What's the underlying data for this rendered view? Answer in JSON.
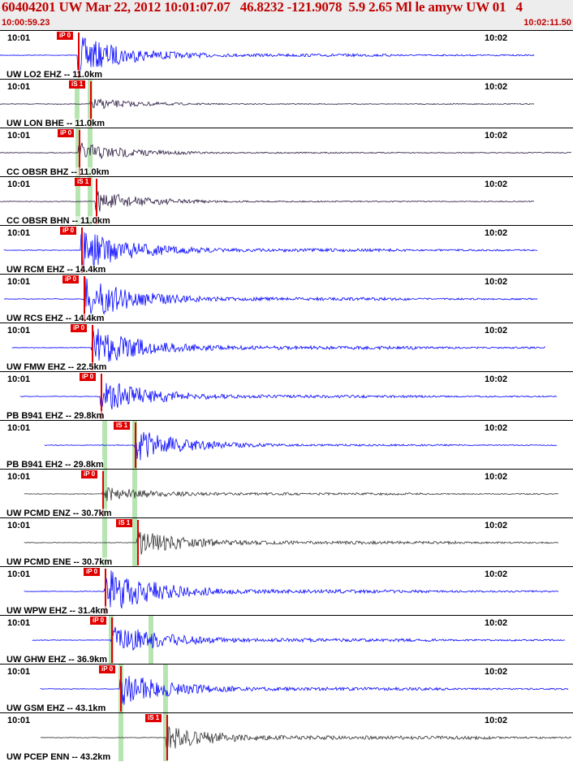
{
  "header": {
    "title": "60404201 UW Mar 22, 2012 10:01:07.07   46.8232 -121.9078  5.9 2.65 Ml le amyw UW 01   4",
    "start_time": "10:00:59.23",
    "end_time": "10:02:11.50"
  },
  "colors": {
    "header_text": "#c00000",
    "pick": "#e00000",
    "trace_blue": "#0000ff",
    "trace_dark": "#2a1a40",
    "trace_gray": "#333333",
    "window": "#b7e5b2"
  },
  "channels": [
    {
      "label": "UW LO2 EHZ -- 11.0km",
      "time_left": "10:01",
      "time_right": "10:02",
      "pick": "iP 0",
      "trace": "blue",
      "amp": 0.8,
      "coda": 0.18
    },
    {
      "label": "UW LON BHE -- 11.0km",
      "time_left": "10:01",
      "time_right": "10:02",
      "pick": "iS 1",
      "trace": "dark",
      "amp": 0.25,
      "coda": 0.05
    },
    {
      "label": "CC OBSR BHZ -- 11.0km",
      "time_left": "10:01",
      "time_right": "10:02",
      "pick": "iP 0",
      "trace": "dark",
      "amp": 0.45,
      "coda": 0.08
    },
    {
      "label": "CC OBSR BHN -- 11.0km",
      "time_left": "10:01",
      "time_right": "10:02",
      "pick": "iS 1",
      "trace": "dark",
      "amp": 0.45,
      "coda": 0.08
    },
    {
      "label": "UW RCM EHZ -- 14.4km",
      "time_left": "10:01",
      "time_right": "10:02",
      "pick": "iP 0",
      "trace": "blue",
      "amp": 0.85,
      "coda": 0.2
    },
    {
      "label": "UW RCS EHZ -- 14.4km",
      "time_left": "10:01",
      "time_right": "10:02",
      "pick": "iP 0",
      "trace": "blue",
      "amp": 0.9,
      "coda": 0.2
    },
    {
      "label": "UW FMW EHZ -- 22.5km",
      "time_left": "10:01",
      "time_right": "10:02",
      "pick": "iP 0",
      "trace": "blue",
      "amp": 0.85,
      "coda": 0.22
    },
    {
      "label": "PB B941 EHZ -- 29.8km",
      "time_left": "10:01",
      "time_right": "10:02",
      "pick": "iP 0",
      "trace": "blue",
      "amp": 0.75,
      "coda": 0.18
    },
    {
      "label": "PB B941 EH2 -- 29.8km",
      "time_left": "10:01",
      "time_right": "10:02",
      "pick": "iS 1",
      "trace": "blue",
      "amp": 0.7,
      "coda": 0.12
    },
    {
      "label": "UW PCMD ENZ -- 30.7km",
      "time_left": "10:01",
      "time_right": "10:02",
      "pick": "iP 0",
      "trace": "gray",
      "amp": 0.3,
      "coda": 0.15
    },
    {
      "label": "UW PCMD ENE -- 30.7km",
      "time_left": "10:01",
      "time_right": "10:02",
      "pick": "iS 1",
      "trace": "gray",
      "amp": 0.5,
      "coda": 0.2
    },
    {
      "label": "UW WPW EHZ -- 31.4km",
      "time_left": "10:01",
      "time_right": "10:02",
      "pick": "iP 0",
      "trace": "blue",
      "amp": 0.95,
      "coda": 0.22
    },
    {
      "label": "UW GHW EHZ -- 36.9km",
      "time_left": "10:01",
      "time_right": "10:02",
      "pick": "iP 0",
      "trace": "blue",
      "amp": 0.7,
      "coda": 0.2
    },
    {
      "label": "UW GSM EHZ -- 43.1km",
      "time_left": "10:01",
      "time_right": "10:02",
      "pick": "iP 0",
      "trace": "blue",
      "amp": 0.7,
      "coda": 0.2
    },
    {
      "label": "UW PCEP ENN -- 43.2km",
      "time_left": "10:01",
      "time_right": "10:02",
      "pick": "iS 1",
      "trace": "gray",
      "amp": 0.5,
      "coda": 0.22
    }
  ]
}
